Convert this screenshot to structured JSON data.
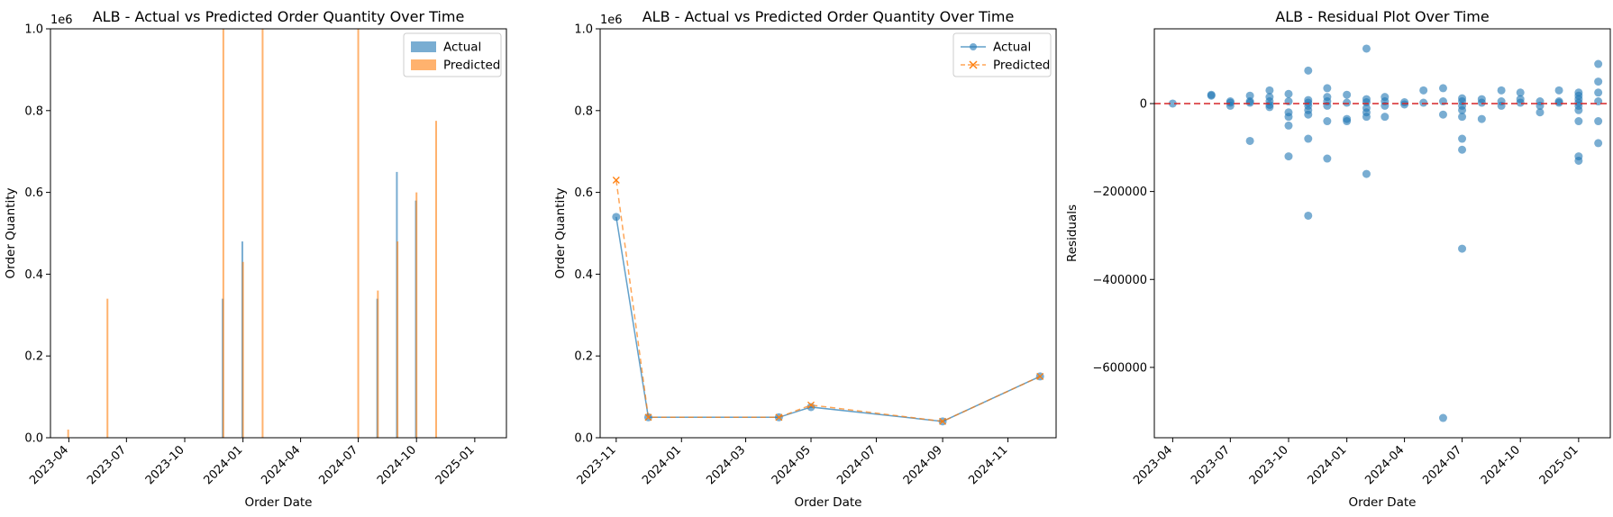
{
  "colors": {
    "actual": "#1f77b4",
    "predicted": "#ff7f0e",
    "zero_line": "#d62728"
  },
  "chart_data": [
    {
      "type": "bar",
      "title": "ALB - Actual vs Predicted Order Quantity Over Time",
      "xlabel": "Order Date",
      "ylabel": "Order Quantity",
      "scale_label": "1e6",
      "x_range": [
        "2023-03-03",
        "2025-02-20"
      ],
      "ylim": [
        0,
        1.0
      ],
      "y_ticks": [
        "0.0",
        "0.2",
        "0.4",
        "0.6",
        "0.8",
        "1.0"
      ],
      "x_ticks": [
        "2023-04",
        "2023-07",
        "2023-10",
        "2024-01",
        "2024-04",
        "2024-07",
        "2024-10",
        "2025-01"
      ],
      "legend": {
        "placement": "top-right",
        "entries": [
          "Actual",
          "Predicted"
        ]
      },
      "series": [
        {
          "name": "Actual",
          "points": [
            {
              "x": "2023-11-30",
              "y": 0.34
            },
            {
              "x": "2023-12-31",
              "y": 0.48
            },
            {
              "x": "2024-07-31",
              "y": 0.34
            },
            {
              "x": "2024-08-31",
              "y": 0.65
            },
            {
              "x": "2024-09-30",
              "y": 0.58
            }
          ]
        },
        {
          "name": "Predicted",
          "points": [
            {
              "x": "2023-03-31",
              "y": 0.02
            },
            {
              "x": "2023-06-01",
              "y": 0.34
            },
            {
              "x": "2023-12-01",
              "y": 1.0
            },
            {
              "x": "2024-01-01",
              "y": 0.43
            },
            {
              "x": "2024-02-01",
              "y": 1.0
            },
            {
              "x": "2024-07-01",
              "y": 1.0
            },
            {
              "x": "2024-08-01",
              "y": 0.36
            },
            {
              "x": "2024-09-01",
              "y": 0.48
            },
            {
              "x": "2024-10-01",
              "y": 0.6
            },
            {
              "x": "2024-11-01",
              "y": 0.775
            }
          ]
        }
      ]
    },
    {
      "type": "line",
      "title": "ALB - Actual vs Predicted Order Quantity Over Time",
      "xlabel": "Order Date",
      "ylabel": "Order Quantity",
      "scale_label": "1e6",
      "x_range": [
        "2023-10-17",
        "2024-12-16"
      ],
      "ylim": [
        0,
        1.0
      ],
      "y_ticks": [
        "0.0",
        "0.2",
        "0.4",
        "0.6",
        "0.8",
        "1.0"
      ],
      "x_ticks": [
        "2023-11",
        "2024-01",
        "2024-03",
        "2024-05",
        "2024-07",
        "2024-09",
        "2024-11"
      ],
      "legend": {
        "placement": "top-right",
        "entries": [
          "Actual",
          "Predicted"
        ]
      },
      "series": [
        {
          "name": "Actual",
          "points": [
            {
              "x": "2023-11-01",
              "y": 0.54
            },
            {
              "x": "2023-12-01",
              "y": 0.05
            },
            {
              "x": "2024-04-01",
              "y": 0.05
            },
            {
              "x": "2024-05-01",
              "y": 0.075
            },
            {
              "x": "2024-09-01",
              "y": 0.04
            },
            {
              "x": "2024-12-01",
              "y": 0.15
            }
          ]
        },
        {
          "name": "Predicted",
          "points": [
            {
              "x": "2023-11-01",
              "y": 0.63
            },
            {
              "x": "2023-12-01",
              "y": 0.05
            },
            {
              "x": "2024-04-01",
              "y": 0.05
            },
            {
              "x": "2024-05-01",
              "y": 0.08
            },
            {
              "x": "2024-09-01",
              "y": 0.04
            },
            {
              "x": "2024-12-01",
              "y": 0.15
            }
          ]
        }
      ]
    },
    {
      "type": "scatter",
      "title": "ALB - Residual Plot Over Time",
      "xlabel": "Order Date",
      "ylabel": "Residuals",
      "x_range": [
        "2023-03-03",
        "2025-02-20"
      ],
      "ylim": [
        -760000,
        170000
      ],
      "y_ticks": [
        {
          "label": "0",
          "value": 0
        },
        {
          "label": "−200000",
          "value": -200000
        },
        {
          "label": "−400000",
          "value": -400000
        },
        {
          "label": "−600000",
          "value": -600000
        }
      ],
      "x_ticks": [
        "2023-04",
        "2023-07",
        "2023-10",
        "2024-01",
        "2024-04",
        "2024-07",
        "2024-10",
        "2025-01"
      ],
      "reference_line": 0,
      "points": [
        {
          "x": "2023-04-01",
          "y": 0
        },
        {
          "x": "2023-06-01",
          "y": 20000
        },
        {
          "x": "2023-06-01",
          "y": 18000
        },
        {
          "x": "2023-07-01",
          "y": 5000
        },
        {
          "x": "2023-07-01",
          "y": -5000
        },
        {
          "x": "2023-07-01",
          "y": 2000
        },
        {
          "x": "2023-08-01",
          "y": 18000
        },
        {
          "x": "2023-08-01",
          "y": 5000
        },
        {
          "x": "2023-08-01",
          "y": -85000
        },
        {
          "x": "2023-08-01",
          "y": 2000
        },
        {
          "x": "2023-09-01",
          "y": 30000
        },
        {
          "x": "2023-09-01",
          "y": 15000
        },
        {
          "x": "2023-09-01",
          "y": 5000
        },
        {
          "x": "2023-09-01",
          "y": -3000
        },
        {
          "x": "2023-09-01",
          "y": -8000
        },
        {
          "x": "2023-10-01",
          "y": 22000
        },
        {
          "x": "2023-10-01",
          "y": 5000
        },
        {
          "x": "2023-10-01",
          "y": -20000
        },
        {
          "x": "2023-10-01",
          "y": -30000
        },
        {
          "x": "2023-10-01",
          "y": -50000
        },
        {
          "x": "2023-10-01",
          "y": -120000
        },
        {
          "x": "2023-11-01",
          "y": 75000
        },
        {
          "x": "2023-11-01",
          "y": 8000
        },
        {
          "x": "2023-11-01",
          "y": 2000
        },
        {
          "x": "2023-11-01",
          "y": -5000
        },
        {
          "x": "2023-11-01",
          "y": -15000
        },
        {
          "x": "2023-11-01",
          "y": -25000
        },
        {
          "x": "2023-11-01",
          "y": -80000
        },
        {
          "x": "2023-11-01",
          "y": -255000
        },
        {
          "x": "2023-12-01",
          "y": 35000
        },
        {
          "x": "2023-12-01",
          "y": 15000
        },
        {
          "x": "2023-12-01",
          "y": 5000
        },
        {
          "x": "2023-12-01",
          "y": -5000
        },
        {
          "x": "2023-12-01",
          "y": -40000
        },
        {
          "x": "2023-12-01",
          "y": -125000
        },
        {
          "x": "2024-01-01",
          "y": 20000
        },
        {
          "x": "2024-01-01",
          "y": 2000
        },
        {
          "x": "2024-01-01",
          "y": -35000
        },
        {
          "x": "2024-01-01",
          "y": -40000
        },
        {
          "x": "2024-02-01",
          "y": 125000
        },
        {
          "x": "2024-02-01",
          "y": 10000
        },
        {
          "x": "2024-02-01",
          "y": 3000
        },
        {
          "x": "2024-02-01",
          "y": -10000
        },
        {
          "x": "2024-02-01",
          "y": -20000
        },
        {
          "x": "2024-02-01",
          "y": -30000
        },
        {
          "x": "2024-02-01",
          "y": -160000
        },
        {
          "x": "2024-03-01",
          "y": 15000
        },
        {
          "x": "2024-03-01",
          "y": 5000
        },
        {
          "x": "2024-03-01",
          "y": -5000
        },
        {
          "x": "2024-03-01",
          "y": -30000
        },
        {
          "x": "2024-04-01",
          "y": 3000
        },
        {
          "x": "2024-04-01",
          "y": -2000
        },
        {
          "x": "2024-05-01",
          "y": 30000
        },
        {
          "x": "2024-05-01",
          "y": 2000
        },
        {
          "x": "2024-06-01",
          "y": 35000
        },
        {
          "x": "2024-06-01",
          "y": 5000
        },
        {
          "x": "2024-06-01",
          "y": -25000
        },
        {
          "x": "2024-06-01",
          "y": -715000
        },
        {
          "x": "2024-07-01",
          "y": 12000
        },
        {
          "x": "2024-07-01",
          "y": 5000
        },
        {
          "x": "2024-07-01",
          "y": -5000
        },
        {
          "x": "2024-07-01",
          "y": -15000
        },
        {
          "x": "2024-07-01",
          "y": -30000
        },
        {
          "x": "2024-07-01",
          "y": -80000
        },
        {
          "x": "2024-07-01",
          "y": -105000
        },
        {
          "x": "2024-07-01",
          "y": -330000
        },
        {
          "x": "2024-08-01",
          "y": 10000
        },
        {
          "x": "2024-08-01",
          "y": 2000
        },
        {
          "x": "2024-08-01",
          "y": -35000
        },
        {
          "x": "2024-09-01",
          "y": 30000
        },
        {
          "x": "2024-09-01",
          "y": 5000
        },
        {
          "x": "2024-09-01",
          "y": -5000
        },
        {
          "x": "2024-10-01",
          "y": 25000
        },
        {
          "x": "2024-10-01",
          "y": 10000
        },
        {
          "x": "2024-10-01",
          "y": 2000
        },
        {
          "x": "2024-11-01",
          "y": 5000
        },
        {
          "x": "2024-11-01",
          "y": -5000
        },
        {
          "x": "2024-11-01",
          "y": -20000
        },
        {
          "x": "2024-12-01",
          "y": 30000
        },
        {
          "x": "2024-12-01",
          "y": 5000
        },
        {
          "x": "2024-12-01",
          "y": 2000
        },
        {
          "x": "2025-01-01",
          "y": 25000
        },
        {
          "x": "2025-01-01",
          "y": 18000
        },
        {
          "x": "2025-01-01",
          "y": 10000
        },
        {
          "x": "2025-01-01",
          "y": 2000
        },
        {
          "x": "2025-01-01",
          "y": -5000
        },
        {
          "x": "2025-01-01",
          "y": -15000
        },
        {
          "x": "2025-01-01",
          "y": -40000
        },
        {
          "x": "2025-01-01",
          "y": -120000
        },
        {
          "x": "2025-01-01",
          "y": -130000
        },
        {
          "x": "2025-02-01",
          "y": 90000
        },
        {
          "x": "2025-02-01",
          "y": 50000
        },
        {
          "x": "2025-02-01",
          "y": 25000
        },
        {
          "x": "2025-02-01",
          "y": 5000
        },
        {
          "x": "2025-02-01",
          "y": -40000
        },
        {
          "x": "2025-02-01",
          "y": -90000
        }
      ]
    }
  ]
}
